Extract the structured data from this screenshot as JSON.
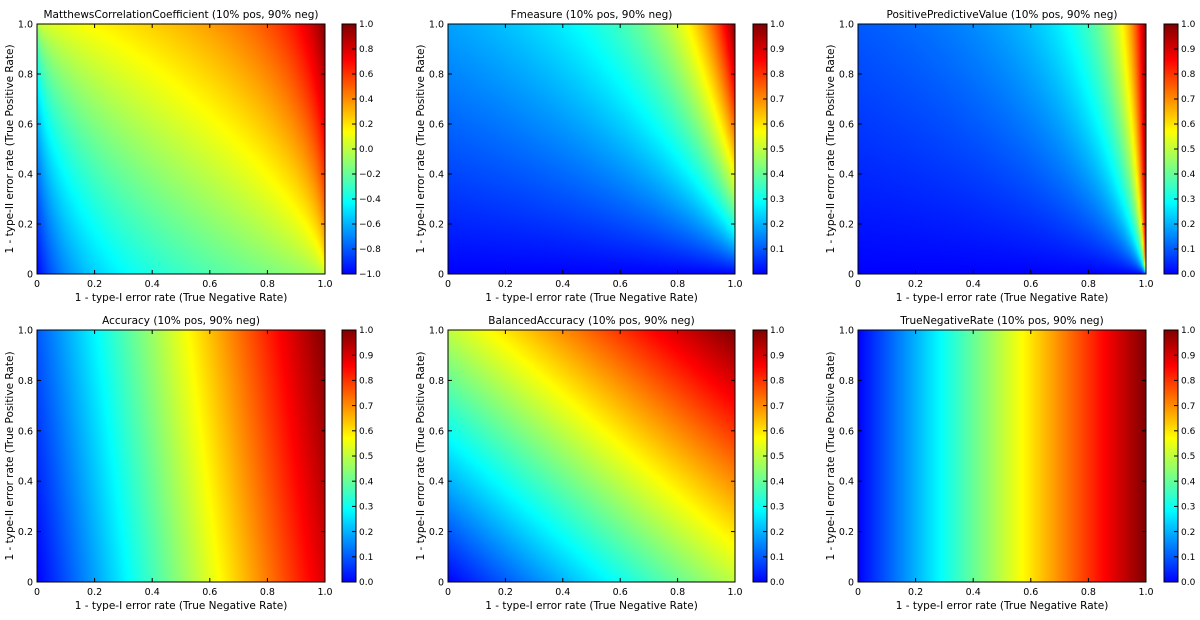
{
  "figure": {
    "colors": {
      "background": "#ffffff",
      "axis": "#000000"
    }
  },
  "chart_data": [
    {
      "type": "heatmap",
      "metric": "mcc",
      "title": "MatthewsCorrelationCoefficient (10% pos, 90% neg)",
      "xlabel": "1 - type-I error rate (True Negative Rate)",
      "ylabel": "1 - type-II error rate (True Positive Rate)",
      "xlim": [
        0,
        1
      ],
      "ylim": [
        0,
        1
      ],
      "xticks": [
        "0",
        "0.2",
        "0.4",
        "0.6",
        "0.8",
        "1.0"
      ],
      "yticks": [
        "0",
        "0.2",
        "0.4",
        "0.6",
        "0.8",
        "1.0"
      ],
      "colorbar": {
        "range": [
          -1.0,
          1.0
        ],
        "ticks": [
          "−1.0",
          "−0.8",
          "−0.6",
          "−0.4",
          "−0.2",
          "0.0",
          "0.2",
          "0.4",
          "0.6",
          "0.8",
          "1.0"
        ],
        "tick_values": [
          -1.0,
          -0.8,
          -0.6,
          -0.4,
          -0.2,
          0.0,
          0.2,
          0.4,
          0.6,
          0.8,
          1.0
        ]
      }
    },
    {
      "type": "heatmap",
      "metric": "fmeasure",
      "title": "Fmeasure (10% pos, 90% neg)",
      "xlabel": "1 - type-I error rate (True Negative Rate)",
      "ylabel": "1 - type-II error rate (True Positive Rate)",
      "xlim": [
        0,
        1
      ],
      "ylim": [
        0,
        1
      ],
      "xticks": [
        "0",
        "0.2",
        "0.4",
        "0.6",
        "0.8",
        "1.0"
      ],
      "yticks": [
        "0",
        "0.2",
        "0.4",
        "0.6",
        "0.8",
        "1.0"
      ],
      "colorbar": {
        "range": [
          0.0,
          1.0
        ],
        "ticks": [
          "0.1",
          "0.2",
          "0.3",
          "0.4",
          "0.5",
          "0.6",
          "0.7",
          "0.8",
          "0.9",
          "1.0"
        ],
        "tick_values": [
          0.1,
          0.2,
          0.3,
          0.4,
          0.5,
          0.6,
          0.7,
          0.8,
          0.9,
          1.0
        ]
      }
    },
    {
      "type": "heatmap",
      "metric": "ppv",
      "title": "PositivePredictiveValue (10% pos, 90% neg)",
      "xlabel": "1 - type-I error rate (True Negative Rate)",
      "ylabel": "1 - type-II error rate (True Positive Rate)",
      "xlim": [
        0,
        1
      ],
      "ylim": [
        0,
        1
      ],
      "xticks": [
        "0",
        "0.2",
        "0.4",
        "0.6",
        "0.8",
        "1.0"
      ],
      "yticks": [
        "0",
        "0.2",
        "0.4",
        "0.6",
        "0.8",
        "1.0"
      ],
      "colorbar": {
        "range": [
          0.0,
          1.0
        ],
        "ticks": [
          "0.0",
          "0.1",
          "0.2",
          "0.3",
          "0.4",
          "0.5",
          "0.6",
          "0.7",
          "0.8",
          "0.9",
          "1.0"
        ],
        "tick_values": [
          0.0,
          0.1,
          0.2,
          0.3,
          0.4,
          0.5,
          0.6,
          0.7,
          0.8,
          0.9,
          1.0
        ]
      }
    },
    {
      "type": "heatmap",
      "metric": "accuracy",
      "title": "Accuracy (10% pos, 90% neg)",
      "xlabel": "1 - type-I error rate (True Negative Rate)",
      "ylabel": "1 - type-II error rate (True Positive Rate)",
      "xlim": [
        0,
        1
      ],
      "ylim": [
        0,
        1
      ],
      "xticks": [
        "0",
        "0.2",
        "0.4",
        "0.6",
        "0.8",
        "1.0"
      ],
      "yticks": [
        "0",
        "0.2",
        "0.4",
        "0.6",
        "0.8",
        "1.0"
      ],
      "colorbar": {
        "range": [
          0.0,
          1.0
        ],
        "ticks": [
          "0.0",
          "0.1",
          "0.2",
          "0.3",
          "0.4",
          "0.5",
          "0.6",
          "0.7",
          "0.8",
          "0.9",
          "1.0"
        ],
        "tick_values": [
          0.0,
          0.1,
          0.2,
          0.3,
          0.4,
          0.5,
          0.6,
          0.7,
          0.8,
          0.9,
          1.0
        ]
      }
    },
    {
      "type": "heatmap",
      "metric": "balanced",
      "title": "BalancedAccuracy (10% pos, 90% neg)",
      "xlabel": "1 - type-I error rate (True Negative Rate)",
      "ylabel": "1 - type-II error rate (True Positive Rate)",
      "xlim": [
        0,
        1
      ],
      "ylim": [
        0,
        1
      ],
      "xticks": [
        "0",
        "0.2",
        "0.4",
        "0.6",
        "0.8",
        "1.0"
      ],
      "yticks": [
        "0",
        "0.2",
        "0.4",
        "0.6",
        "0.8",
        "1.0"
      ],
      "colorbar": {
        "range": [
          0.0,
          1.0
        ],
        "ticks": [
          "0.0",
          "0.1",
          "0.2",
          "0.3",
          "0.4",
          "0.5",
          "0.6",
          "0.7",
          "0.8",
          "0.9",
          "1.0"
        ],
        "tick_values": [
          0.0,
          0.1,
          0.2,
          0.3,
          0.4,
          0.5,
          0.6,
          0.7,
          0.8,
          0.9,
          1.0
        ]
      }
    },
    {
      "type": "heatmap",
      "metric": "tnr",
      "title": "TrueNegativeRate (10% pos, 90% neg)",
      "xlabel": "1 - type-I error rate (True Negative Rate)",
      "ylabel": "1 - type-II error rate (True Positive Rate)",
      "xlim": [
        0,
        1
      ],
      "ylim": [
        0,
        1
      ],
      "xticks": [
        "0",
        "0.2",
        "0.4",
        "0.6",
        "0.8",
        "1.0"
      ],
      "yticks": [
        "0",
        "0.2",
        "0.4",
        "0.6",
        "0.8",
        "1.0"
      ],
      "colorbar": {
        "range": [
          0.0,
          1.0
        ],
        "ticks": [
          "0.0",
          "0.1",
          "0.2",
          "0.3",
          "0.4",
          "0.5",
          "0.6",
          "0.7",
          "0.8",
          "0.9",
          "1.0"
        ],
        "tick_values": [
          0.0,
          0.1,
          0.2,
          0.3,
          0.4,
          0.5,
          0.6,
          0.7,
          0.8,
          0.9,
          1.0
        ]
      }
    }
  ]
}
